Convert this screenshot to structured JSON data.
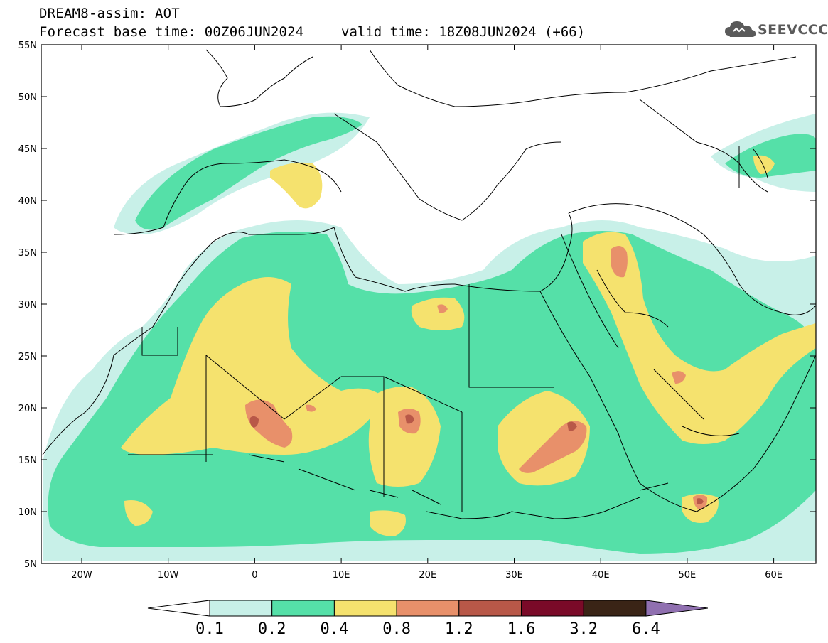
{
  "title": {
    "line1": "DREAM8-assim: AOT",
    "line2": "Forecast base time: 00Z06JUN2024",
    "valid": "valid time: 18Z08JUN2024 (+66)"
  },
  "logo": {
    "text": "SEEVCCC",
    "icon": "cloud-icon"
  },
  "axes": {
    "lat_labels": [
      "55N",
      "50N",
      "45N",
      "40N",
      "35N",
      "30N",
      "25N",
      "20N",
      "15N",
      "10N",
      "5N"
    ],
    "lon_labels": [
      "20W",
      "10W",
      "0",
      "10E",
      "20E",
      "30E",
      "40E",
      "50E",
      "60E"
    ]
  },
  "colorbar": {
    "labels": [
      "0.1",
      "0.2",
      "0.4",
      "0.8",
      "1.2",
      "1.6",
      "3.2",
      "6.4"
    ],
    "colors": [
      "#ffffff",
      "#c8f0e8",
      "#55e0a8",
      "#f5e26e",
      "#e8906a",
      "#b85848",
      "#7a0a28",
      "#3a2416",
      "#9070b0"
    ]
  },
  "map": {
    "background": "#ffffff",
    "border_color": "#000000"
  }
}
